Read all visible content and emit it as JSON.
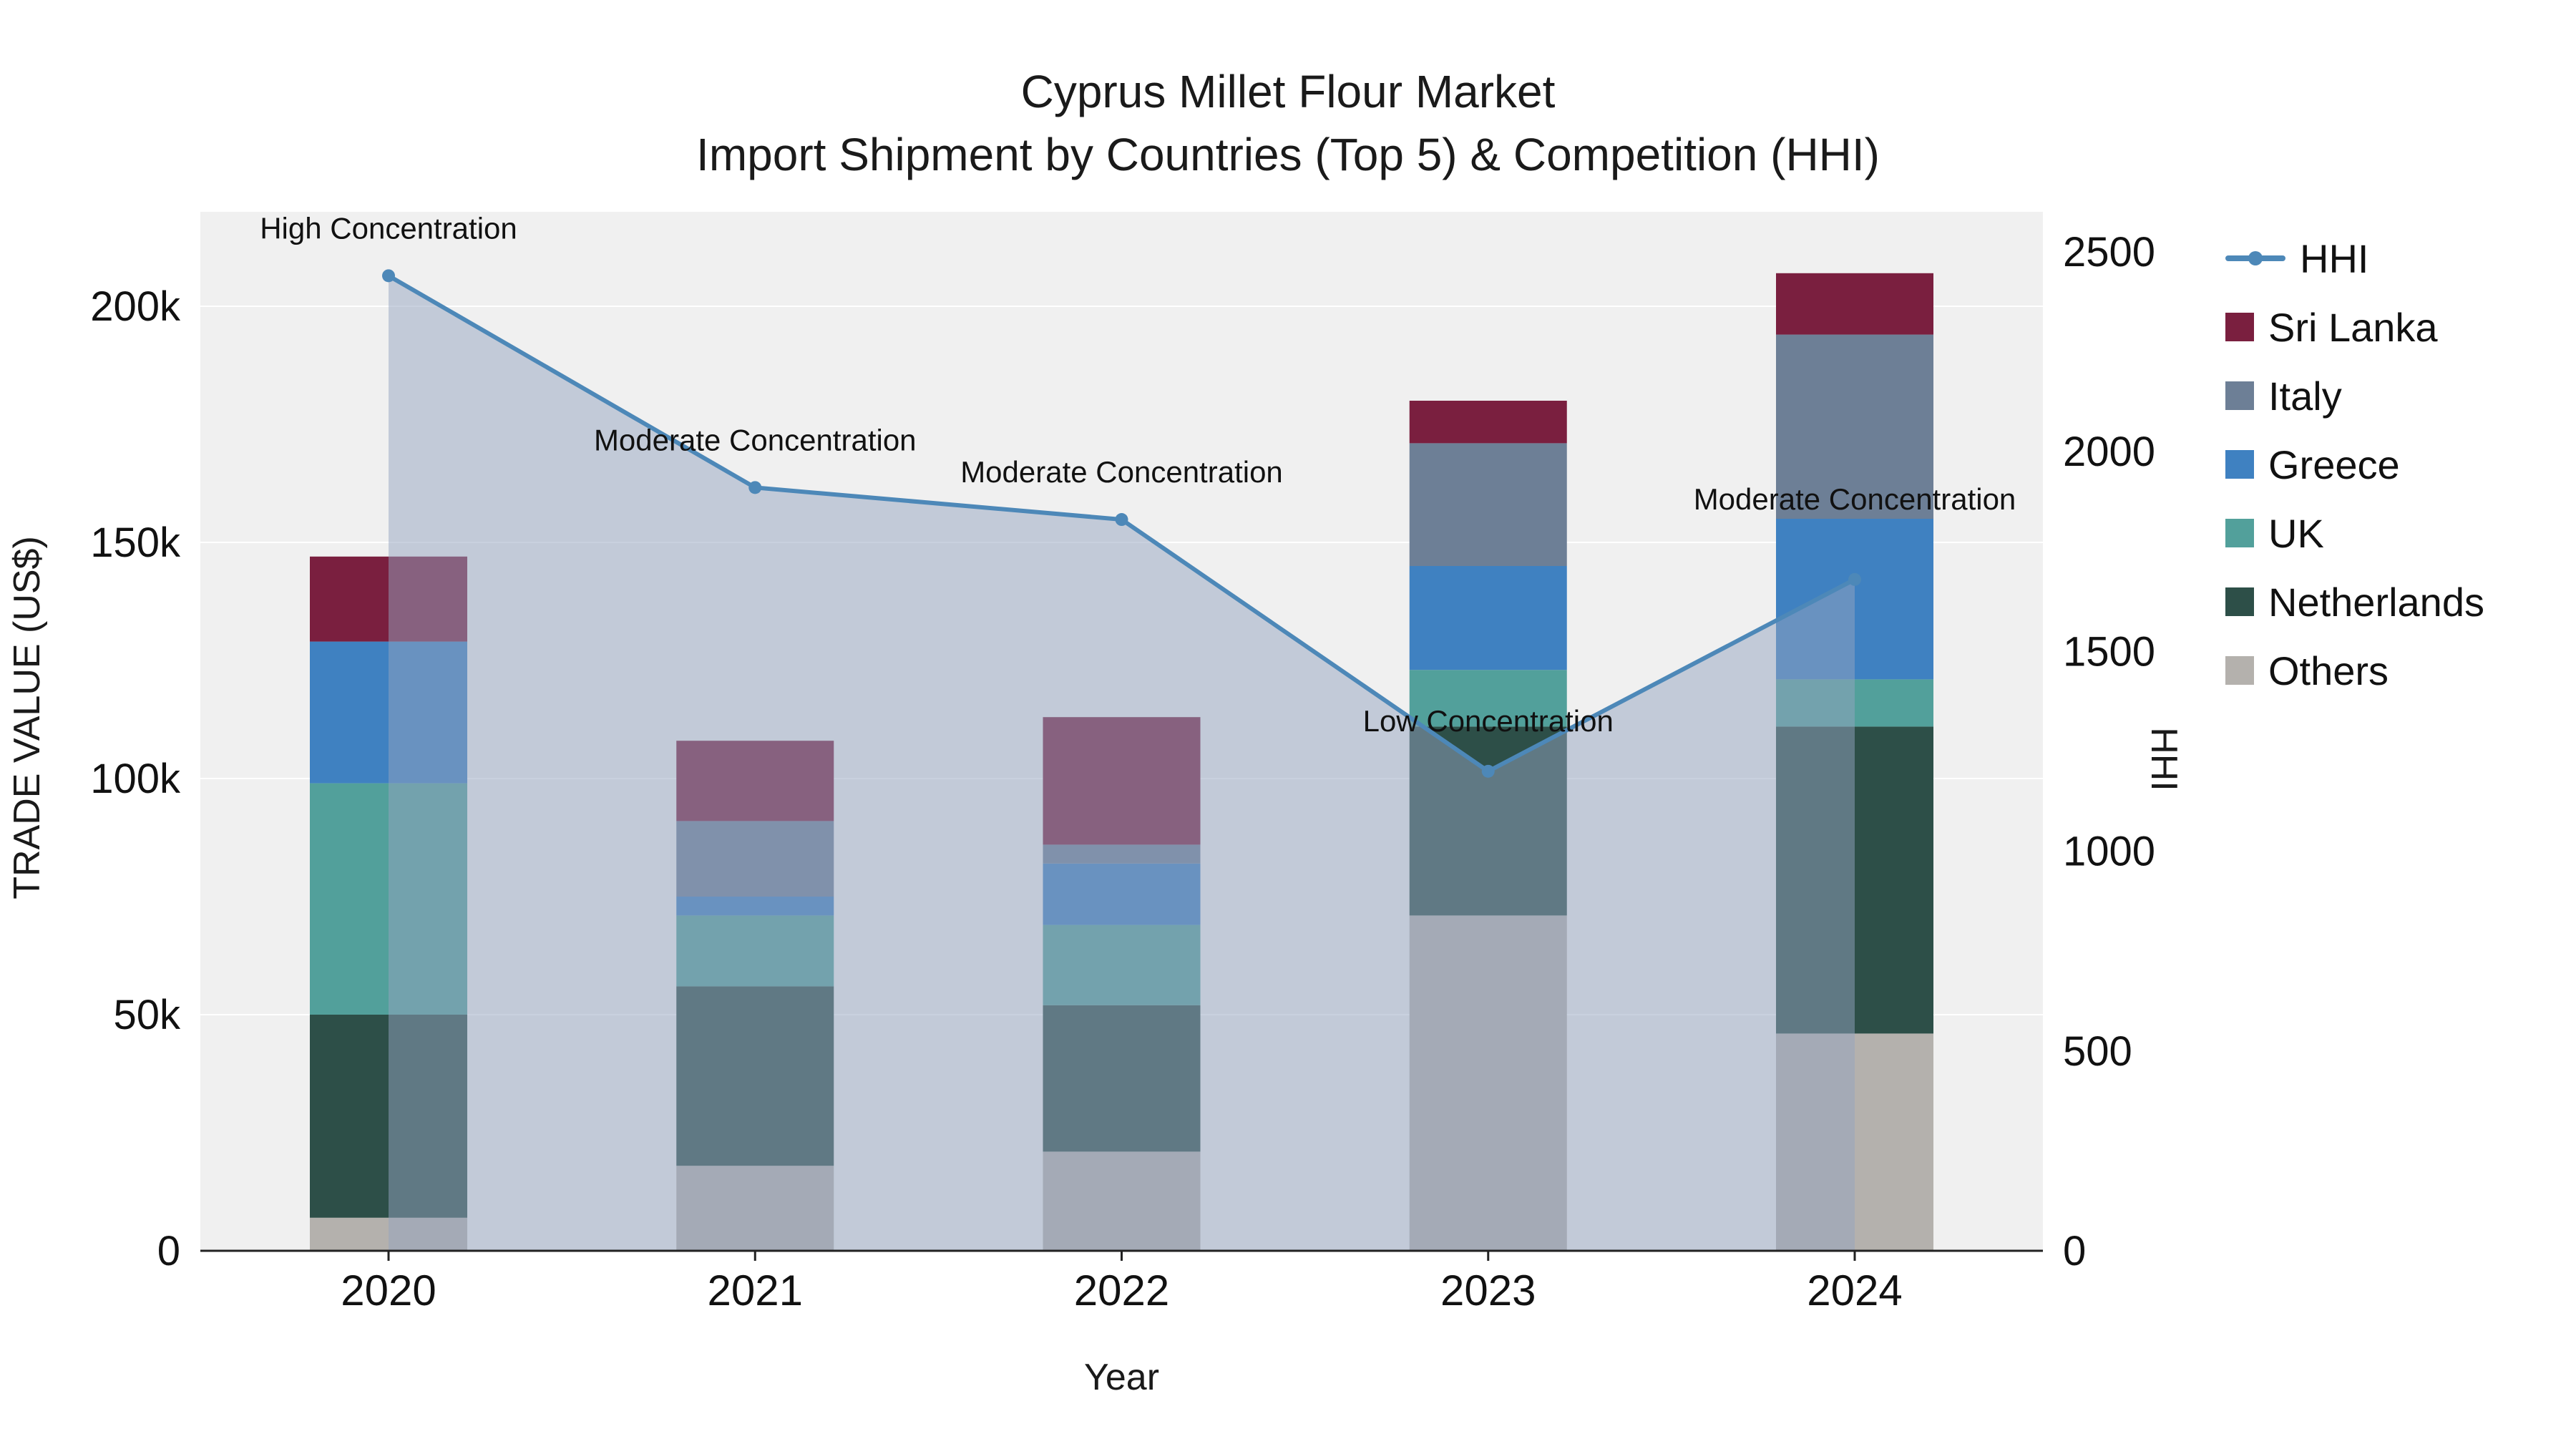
{
  "chart_data": {
    "type": "combo-stacked-bar-line",
    "title_line1": "Cyprus Millet Flour Market",
    "title_line2": "Import Shipment by Countries (Top 5) & Competition (HHI)",
    "xlabel": "Year",
    "ylabel_left": "TRADE VALUE (US$)",
    "ylabel_right": "HHI",
    "categories": [
      "2020",
      "2021",
      "2022",
      "2023",
      "2024"
    ],
    "bar_series": [
      {
        "name": "Others",
        "color": "#b4b1ad",
        "values": [
          7000,
          18000,
          21000,
          71000,
          46000
        ]
      },
      {
        "name": "Netherlands",
        "color": "#2d4f48",
        "values": [
          43000,
          38000,
          31000,
          40000,
          65000
        ]
      },
      {
        "name": "UK",
        "color": "#52a09b",
        "values": [
          49000,
          15000,
          17000,
          12000,
          10000
        ]
      },
      {
        "name": "Greece",
        "color": "#3f81c1",
        "values": [
          30000,
          4000,
          13000,
          22000,
          34000
        ]
      },
      {
        "name": "Italy",
        "color": "#6d7f96",
        "values": [
          0,
          16000,
          4000,
          26000,
          39000
        ]
      },
      {
        "name": "Sri Lanka",
        "color": "#7a1f3f",
        "values": [
          18000,
          17000,
          27000,
          9000,
          13000
        ]
      }
    ],
    "line_series": {
      "name": "HHI",
      "color": "#4d88b8",
      "fill_color": "rgba(148,164,192,0.5)",
      "values": [
        2440,
        1910,
        1830,
        1200,
        1680
      ]
    },
    "annotations": [
      {
        "text": "High Concentration"
      },
      {
        "text": "Moderate Concentration"
      },
      {
        "text": "Moderate Concentration"
      },
      {
        "text": "Low Concentration"
      },
      {
        "text": "Moderate Concentration"
      }
    ],
    "axes": {
      "left_ticks": [
        {
          "label": "0",
          "value": 0
        },
        {
          "label": "50k",
          "value": 50000
        },
        {
          "label": "100k",
          "value": 100000
        },
        {
          "label": "150k",
          "value": 150000
        },
        {
          "label": "200k",
          "value": 200000
        }
      ],
      "right_ticks": [
        {
          "label": "0",
          "value": 0
        },
        {
          "label": "500",
          "value": 500
        },
        {
          "label": "1000",
          "value": 1000
        },
        {
          "label": "1500",
          "value": 1500
        },
        {
          "label": "2000",
          "value": 2000
        },
        {
          "label": "2500",
          "value": 2500
        }
      ],
      "left_max": 220000,
      "right_max": 2600
    },
    "legend": [
      "HHI",
      "Sri Lanka",
      "Italy",
      "Greece",
      "UK",
      "Netherlands",
      "Others"
    ]
  }
}
